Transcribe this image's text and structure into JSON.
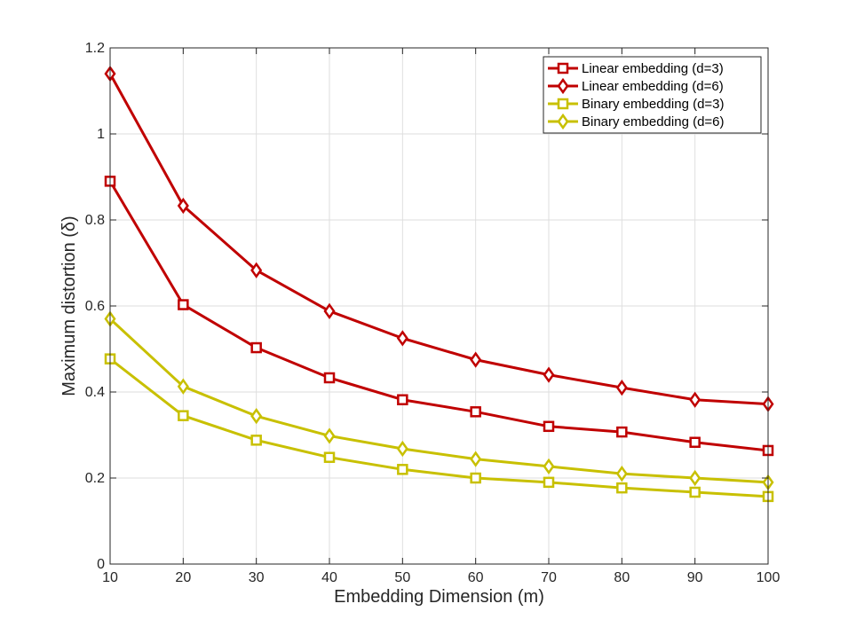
{
  "chart_data": {
    "type": "line",
    "title": "",
    "xlabel": "Embedding Dimension (m)",
    "ylabel": "Maximum distortion (δ)",
    "xlim": [
      10,
      100
    ],
    "ylim": [
      0,
      1.2
    ],
    "grid": true,
    "legend_position": "top-right",
    "x": [
      10,
      20,
      30,
      40,
      50,
      60,
      70,
      80,
      90,
      100
    ],
    "xticks": [
      "10",
      "20",
      "30",
      "40",
      "50",
      "60",
      "70",
      "80",
      "90",
      "100"
    ],
    "yticks": [
      0,
      0.2,
      0.4,
      0.6,
      0.8,
      1,
      1.2
    ],
    "ytick_labels": [
      "0",
      "0.2",
      "0.4",
      "0.6",
      "0.8",
      "1",
      "1.2"
    ],
    "series": [
      {
        "name": "Linear embedding (d=3)",
        "marker": "square",
        "color": "#C00000",
        "values": [
          0.89,
          0.603,
          0.503,
          0.433,
          0.382,
          0.354,
          0.32,
          0.307,
          0.283,
          0.264
        ]
      },
      {
        "name": "Linear embedding (d=6)",
        "marker": "diamond",
        "color": "#C00000",
        "values": [
          1.14,
          0.833,
          0.683,
          0.588,
          0.525,
          0.475,
          0.44,
          0.41,
          0.382,
          0.372
        ]
      },
      {
        "name": "Binary embedding (d=3)",
        "marker": "square",
        "color": "#C8C000",
        "values": [
          0.477,
          0.345,
          0.288,
          0.248,
          0.22,
          0.2,
          0.19,
          0.177,
          0.167,
          0.157
        ]
      },
      {
        "name": "Binary embedding (d=6)",
        "marker": "diamond",
        "color": "#C8C000",
        "values": [
          0.57,
          0.413,
          0.344,
          0.298,
          0.268,
          0.244,
          0.227,
          0.21,
          0.2,
          0.19
        ]
      }
    ]
  }
}
